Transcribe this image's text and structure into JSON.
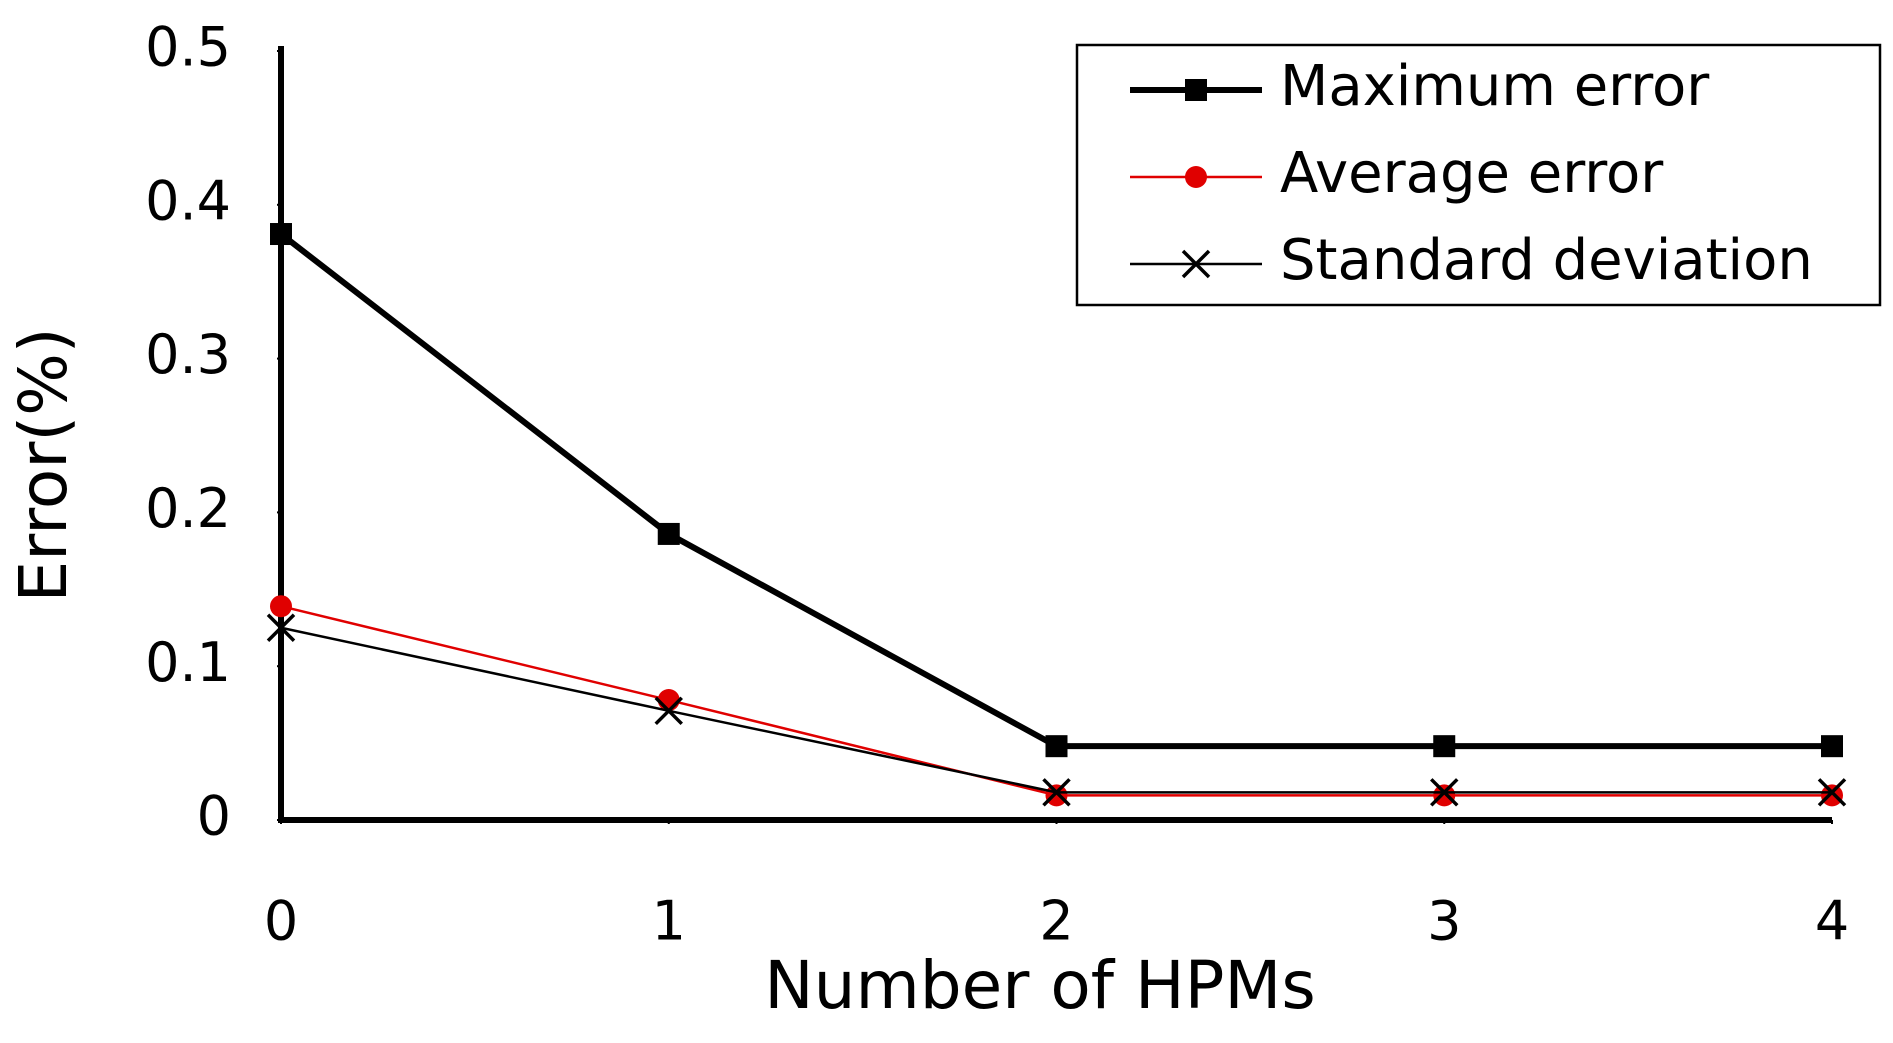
{
  "chart_data": {
    "type": "line",
    "x_label": "Number of HPMs",
    "y_label": "Error(%)",
    "x": [
      0,
      1,
      2,
      3,
      4
    ],
    "xlim": [
      0,
      4
    ],
    "xticks": [
      0,
      1,
      2,
      3,
      4
    ],
    "ylim": [
      0,
      0.5
    ],
    "yticks": [
      0,
      0.1,
      0.2,
      0.3,
      0.4,
      0.5
    ],
    "grid": false,
    "legend": "upper right",
    "series": [
      {
        "name": "Maximum error",
        "color": "#000000",
        "marker": "square",
        "width": 6,
        "values": [
          0.381,
          0.186,
          0.048,
          0.048,
          0.048
        ]
      },
      {
        "name": "Average error",
        "color": "#e00000",
        "marker": "circle",
        "width": 2.5,
        "values": [
          0.139,
          0.078,
          0.016,
          0.016,
          0.016
        ]
      },
      {
        "name": "Standard deviation",
        "color": "#000000",
        "marker": "x",
        "width": 2.5,
        "values": [
          0.125,
          0.071,
          0.018,
          0.018,
          0.018
        ]
      }
    ]
  }
}
